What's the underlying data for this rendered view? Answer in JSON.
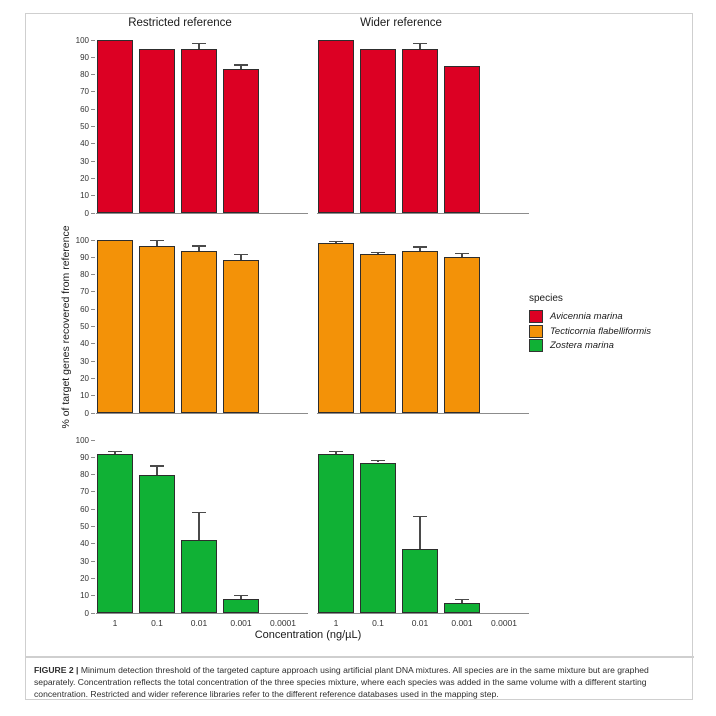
{
  "figure": {
    "caption_label": "FIGURE 2 |",
    "caption_text": " Minimum detection threshold of the targeted capture approach using artificial plant DNA mixtures. All species are in the same mixture but are graphed separately. Concentration reflects the total concentration of the three species mixture, where each species was added in the same volume with a different starting concentration. Restricted and wider reference libraries refer to the different reference databases used in the mapping step."
  },
  "chart_data": {
    "type": "bar",
    "categories": [
      "1",
      "0.1",
      "0.01",
      "0.001",
      "0.0001"
    ],
    "xlabel": "Concentration (ng/µL)",
    "ylabel": "% of target genes recovered from reference",
    "ylim": [
      0,
      100
    ],
    "yticks": [
      0,
      10,
      20,
      30,
      40,
      50,
      60,
      70,
      80,
      90,
      100
    ],
    "grid": false,
    "columns": [
      "Restricted reference",
      "Wider reference"
    ],
    "legend": {
      "title": "species",
      "position": "right",
      "entries": [
        {
          "label": "Avicennia marina",
          "color": "#dc0023"
        },
        {
          "label": "Tecticornia flabelliformis",
          "color": "#f39208"
        },
        {
          "label": "Zostera marina",
          "color": "#10b135"
        }
      ]
    },
    "panels": [
      {
        "column": "Restricted reference",
        "species": "Avicennia marina",
        "values": [
          100,
          95,
          95,
          83.5,
          0
        ],
        "errors": [
          0,
          0,
          3,
          2,
          0
        ]
      },
      {
        "column": "Wider reference",
        "species": "Avicennia marina",
        "values": [
          100,
          95,
          95,
          85,
          0
        ],
        "errors": [
          0,
          0,
          3,
          0,
          0
        ]
      },
      {
        "column": "Restricted reference",
        "species": "Tecticornia flabelliformis",
        "values": [
          100,
          96.5,
          93.5,
          88.5,
          0
        ],
        "errors": [
          0,
          3,
          3,
          3,
          0
        ]
      },
      {
        "column": "Wider reference",
        "species": "Tecticornia flabelliformis",
        "values": [
          98,
          92,
          93.5,
          90,
          0
        ],
        "errors": [
          1,
          1,
          2.5,
          2,
          0
        ]
      },
      {
        "column": "Restricted reference",
        "species": "Zostera marina",
        "values": [
          92,
          80,
          42,
          8,
          0
        ],
        "errors": [
          1.5,
          5,
          16,
          2,
          0
        ]
      },
      {
        "column": "Wider reference",
        "species": "Zostera marina",
        "values": [
          92,
          87,
          37,
          6,
          0
        ],
        "errors": [
          1.5,
          1,
          19,
          2,
          0
        ]
      }
    ]
  }
}
